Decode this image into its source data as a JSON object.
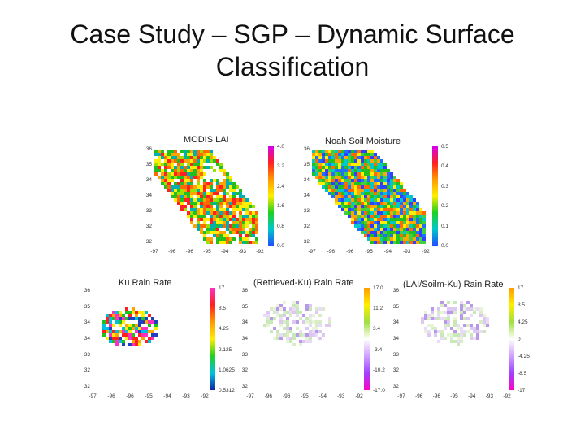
{
  "slide": {
    "title_line1": "Case Study – SGP – Dynamic Surface",
    "title_line2": "Classification"
  },
  "panels": [
    {
      "title": "MODIS LAI",
      "yticks": [
        "36",
        "35",
        "34",
        "34",
        "33",
        "32",
        "32"
      ],
      "xticks": [
        "-97",
        "-96",
        "-96",
        "-95",
        "-94",
        "-93",
        "-92"
      ],
      "cbar_ticks": [
        "4.0",
        "3.2",
        "2.4",
        "1.6",
        "0.8",
        "0.0"
      ],
      "cbar_colors": [
        "#d500f0",
        "#ff2020",
        "#ff9a00",
        "#ffee00",
        "#20d020",
        "#00c8c8",
        "#2050ff"
      ]
    },
    {
      "title": "Noah Soil Moisture",
      "yticks": [
        "36",
        "35",
        "34",
        "34",
        "33",
        "32",
        "32"
      ],
      "xticks": [
        "-97",
        "-96",
        "-96",
        "-95",
        "-94",
        "-93",
        "-92"
      ],
      "cbar_ticks": [
        "0.5",
        "0.4",
        "0.3",
        "0.2",
        "0.1",
        "0.0"
      ],
      "cbar_colors": [
        "#d500f0",
        "#ff2020",
        "#ff9a00",
        "#ffee00",
        "#20d020",
        "#00c8c8",
        "#2050ff"
      ]
    },
    {
      "title": "Ku Rain Rate",
      "yticks": [
        "36",
        "35",
        "34",
        "34",
        "33",
        "32",
        "32"
      ],
      "xticks": [
        "-97",
        "-96",
        "-96",
        "-95",
        "-94",
        "-93",
        "-92"
      ],
      "cbar_ticks": [
        "17",
        "8.5",
        "4.25",
        "2.125",
        "1.0625",
        "0.5312"
      ],
      "cbar_colors": [
        "#ff30c0",
        "#ff2020",
        "#ff9a00",
        "#ffee00",
        "#20d020",
        "#00c0e0",
        "#1020a0"
      ]
    },
    {
      "title": "(Retrieved-Ku) Rain Rate",
      "yticks": [
        "36",
        "35",
        "34",
        "34",
        "33",
        "32",
        "32"
      ],
      "xticks": [
        "-97",
        "-96",
        "-96",
        "-95",
        "-94",
        "-93",
        "-92"
      ],
      "cbar_ticks": [
        "17.0",
        "11.2",
        "3.4",
        "-3.4",
        "-10.2",
        "-17.0"
      ],
      "cbar_colors": [
        "#ff9a00",
        "#ffee00",
        "#a0e040",
        "#ffffff",
        "#d0a0ff",
        "#a040ff",
        "#ff00c0"
      ]
    },
    {
      "title": "(LAI/Soilm-Ku) Rain Rate",
      "yticks": [
        "36",
        "35",
        "34",
        "34",
        "33",
        "32",
        "32"
      ],
      "xticks": [
        "-97",
        "-96",
        "-96",
        "-95",
        "-94",
        "-93",
        "-92"
      ],
      "cbar_ticks": [
        "17",
        "8.5",
        "4.25",
        "0",
        "-4.25",
        "-8.5",
        "-17"
      ],
      "cbar_colors": [
        "#ff9a00",
        "#ffee00",
        "#a0e040",
        "#ffffff",
        "#d0a0ff",
        "#a040ff",
        "#ff00c0"
      ]
    }
  ]
}
